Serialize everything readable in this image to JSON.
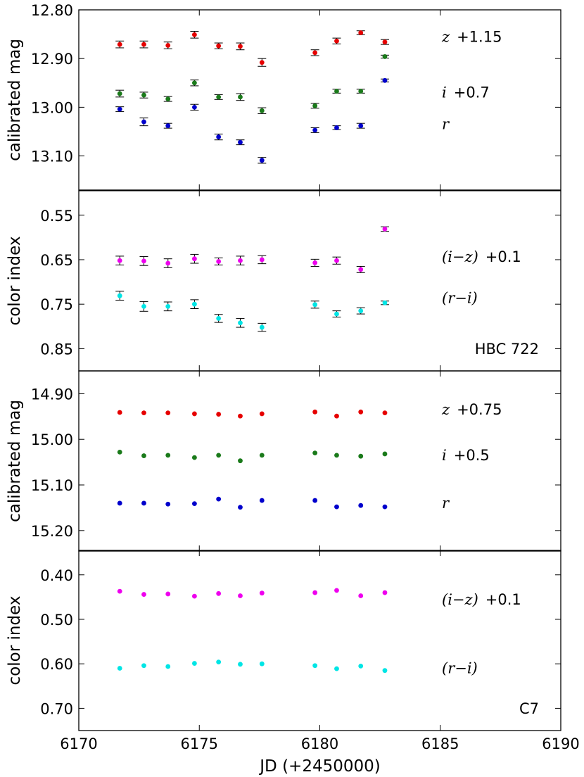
{
  "figure": {
    "xlabel": "JD (+2450000)",
    "x_tick_labels": [
      "6170",
      "6175",
      "6180",
      "6185",
      "6190"
    ]
  },
  "chart_data": [
    {
      "type": "scatter",
      "panel": "HBC 722 magnitudes",
      "ylabel": "calibrated mag",
      "x_ticks": [
        6170,
        6175,
        6180,
        6185,
        6190
      ],
      "xlim": [
        6170,
        6190
      ],
      "ylim": [
        13.17,
        12.8
      ],
      "y_ticks": [
        12.8,
        12.9,
        13.0,
        13.1
      ],
      "y_tick_labels": [
        "12.80",
        "12.90",
        "13.00",
        "13.10"
      ],
      "x": [
        6171.7,
        6172.7,
        6173.7,
        6174.8,
        6175.8,
        6176.7,
        6177.6,
        6179.8,
        6180.7,
        6181.7,
        6182.7
      ],
      "series": [
        {
          "name": "z",
          "offset": "+1.15",
          "color": "#e60000",
          "values": [
            12.871,
            12.871,
            12.873,
            12.851,
            12.874,
            12.875,
            12.908,
            12.888,
            12.864,
            12.847,
            12.866
          ],
          "errors": [
            0.007,
            0.007,
            0.007,
            0.007,
            0.006,
            0.007,
            0.008,
            0.006,
            0.006,
            0.004,
            0.005
          ]
        },
        {
          "name": "i",
          "offset": "+0.7",
          "color": "#1a7a1a",
          "values": [
            12.972,
            12.975,
            12.983,
            12.95,
            12.979,
            12.979,
            13.007,
            12.997,
            12.967,
            12.967,
            12.896
          ],
          "errors": [
            0.007,
            0.006,
            0.005,
            0.006,
            0.005,
            0.007,
            0.006,
            0.005,
            0.004,
            0.004,
            0.003
          ]
        },
        {
          "name": "r",
          "offset": "",
          "color": "#0000cc",
          "values": [
            13.004,
            13.03,
            13.038,
            13.0,
            13.061,
            13.072,
            13.109,
            13.047,
            13.042,
            13.038,
            12.945
          ],
          "errors": [
            0.005,
            0.008,
            0.005,
            0.006,
            0.006,
            0.005,
            0.006,
            0.005,
            0.004,
            0.005,
            0.003
          ]
        }
      ],
      "series_labels": [
        {
          "var": "z",
          "text": "+1.15",
          "y": 12.856
        },
        {
          "var": "i",
          "text": "+0.7",
          "y": 12.97
        },
        {
          "var": "r",
          "text": "",
          "y": 13.035
        }
      ]
    },
    {
      "type": "scatter",
      "panel": "HBC 722 colors",
      "ylabel": "color index",
      "star": "HBC 722",
      "x_ticks": [
        6170,
        6175,
        6180,
        6185,
        6190
      ],
      "xlim": [
        6170,
        6190
      ],
      "ylim": [
        0.9,
        0.495
      ],
      "y_ticks": [
        0.55,
        0.65,
        0.75,
        0.85
      ],
      "y_tick_labels": [
        "0.55",
        "0.65",
        "0.75",
        "0.85"
      ],
      "x": [
        6171.7,
        6172.7,
        6173.7,
        6174.8,
        6175.8,
        6176.7,
        6177.6,
        6179.8,
        6180.7,
        6181.7,
        6182.7
      ],
      "series": [
        {
          "name": "(i-z)",
          "offset": "+0.1",
          "color": "#ee00ee",
          "values": [
            0.652,
            0.653,
            0.658,
            0.648,
            0.654,
            0.652,
            0.65,
            0.657,
            0.652,
            0.672,
            0.581
          ],
          "errors": [
            0.01,
            0.01,
            0.01,
            0.01,
            0.008,
            0.01,
            0.009,
            0.008,
            0.008,
            0.007,
            0.005
          ]
        },
        {
          "name": "(r-i)",
          "offset": "",
          "color": "#00e5e5",
          "values": [
            0.731,
            0.755,
            0.755,
            0.75,
            0.782,
            0.792,
            0.802,
            0.751,
            0.772,
            0.765,
            0.747
          ],
          "errors": [
            0.01,
            0.011,
            0.01,
            0.01,
            0.009,
            0.01,
            0.009,
            0.008,
            0.007,
            0.007,
            0.004
          ]
        }
      ],
      "series_labels": [
        {
          "var": "(i−z)",
          "text": "+0.1",
          "y": 0.644
        },
        {
          "var": "(r−i)",
          "text": "",
          "y": 0.736
        }
      ]
    },
    {
      "type": "scatter",
      "panel": "C7 magnitudes",
      "ylabel": "calibrated mag",
      "x_ticks": [
        6170,
        6175,
        6180,
        6185,
        6190
      ],
      "xlim": [
        6170,
        6190
      ],
      "ylim": [
        15.245,
        14.85
      ],
      "y_ticks": [
        14.9,
        15.0,
        15.1,
        15.2
      ],
      "y_tick_labels": [
        "14.90",
        "15.00",
        "15.10",
        "15.20"
      ],
      "x": [
        6171.7,
        6172.7,
        6173.7,
        6174.8,
        6175.8,
        6176.7,
        6177.6,
        6179.8,
        6180.7,
        6181.7,
        6182.7
      ],
      "series": [
        {
          "name": "z",
          "offset": "+0.75",
          "color": "#e60000",
          "values": [
            14.941,
            14.942,
            14.942,
            14.944,
            14.945,
            14.949,
            14.944,
            14.94,
            14.949,
            14.94,
            14.942
          ]
        },
        {
          "name": "i",
          "offset": "+0.5",
          "color": "#1a7a1a",
          "values": [
            15.028,
            15.036,
            15.035,
            15.04,
            15.035,
            15.047,
            15.035,
            15.03,
            15.035,
            15.037,
            15.032
          ]
        },
        {
          "name": "r",
          "offset": "",
          "color": "#0000cc",
          "values": [
            15.14,
            15.14,
            15.142,
            15.141,
            15.131,
            15.149,
            15.134,
            15.134,
            15.148,
            15.145,
            15.148
          ]
        }
      ],
      "series_labels": [
        {
          "var": "z",
          "text": "+0.75",
          "y": 14.935
        },
        {
          "var": "i",
          "text": "+0.5",
          "y": 15.035
        },
        {
          "var": "r",
          "text": "",
          "y": 15.14
        }
      ]
    },
    {
      "type": "scatter",
      "panel": "C7 colors",
      "ylabel": "color index",
      "star": "C7",
      "x_ticks": [
        6170,
        6175,
        6180,
        6185,
        6190
      ],
      "xlim": [
        6170,
        6190
      ],
      "ylim": [
        0.75,
        0.345
      ],
      "y_ticks": [
        0.4,
        0.5,
        0.6,
        0.7
      ],
      "y_tick_labels": [
        "0.40",
        "0.50",
        "0.60",
        "0.70"
      ],
      "x": [
        6171.7,
        6172.7,
        6173.7,
        6174.8,
        6175.8,
        6176.7,
        6177.6,
        6179.8,
        6180.7,
        6181.7,
        6182.7
      ],
      "series": [
        {
          "name": "(i-z)",
          "offset": "+0.1",
          "color": "#ee00ee",
          "values": [
            0.437,
            0.444,
            0.443,
            0.448,
            0.442,
            0.447,
            0.441,
            0.44,
            0.435,
            0.447,
            0.44
          ]
        },
        {
          "name": "(r-i)",
          "offset": "",
          "color": "#00e5e5",
          "values": [
            0.61,
            0.604,
            0.606,
            0.599,
            0.596,
            0.601,
            0.6,
            0.604,
            0.611,
            0.605,
            0.615
          ]
        }
      ],
      "series_labels": [
        {
          "var": "(i−z)",
          "text": "+0.1",
          "y": 0.456
        },
        {
          "var": "(r−i)",
          "text": "",
          "y": 0.61
        }
      ]
    }
  ]
}
